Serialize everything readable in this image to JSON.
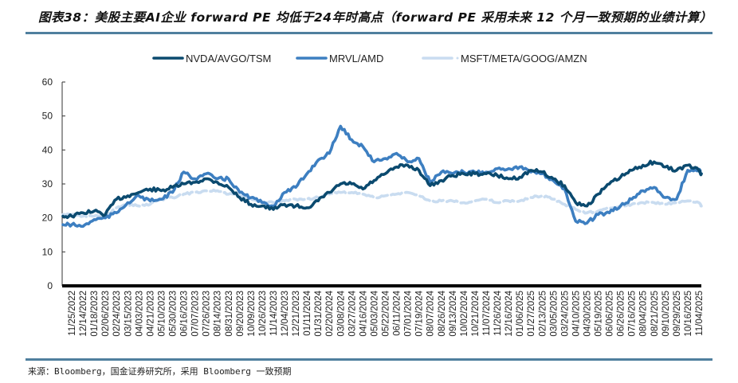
{
  "figure": {
    "title": "图表38：美股主要AI企业 forward PE 均低于24年时高点（forward PE 采用未来 12 个月一致预期的业绩计算）",
    "source": "来源：Bloomberg，国金证券研究所，采用 Bloomberg 一致预期"
  },
  "chart_data": {
    "type": "line",
    "title": "美股主要AI企业 forward PE 均低于24年时高点",
    "xlabel": "",
    "ylabel": "",
    "ylim": [
      0,
      60
    ],
    "yticks": [
      0,
      10,
      20,
      30,
      40,
      50,
      60
    ],
    "grid": false,
    "legend_position": "top-center",
    "x": [
      "11/25/2022",
      "12/14/2022",
      "01/18/2023",
      "02/06/2023",
      "02/24/2023",
      "03/15/2023",
      "04/03/2023",
      "04/21/2023",
      "05/10/2023",
      "05/30/2023",
      "06/16/2023",
      "07/07/2023",
      "07/26/2023",
      "08/14/2023",
      "08/31/2023",
      "09/20/2023",
      "10/09/2023",
      "10/26/2023",
      "11/14/2023",
      "12/04/2023",
      "12/21/2023",
      "01/11/2024",
      "01/31/2024",
      "02/20/2024",
      "03/08/2024",
      "03/27/2024",
      "04/16/2024",
      "05/03/2024",
      "05/22/2024",
      "06/11/2024",
      "07/01/2024",
      "07/19/2024",
      "08/07/2024",
      "08/26/2024",
      "09/13/2024",
      "10/02/2024",
      "10/21/2024",
      "11/07/2024",
      "11/26/2024",
      "12/16/2024",
      "01/06/2025",
      "01/27/2025",
      "02/13/2025",
      "03/05/2025",
      "03/24/2025",
      "04/10/2025",
      "04/30/2025",
      "05/19/2025",
      "06/06/2025",
      "06/26/2025",
      "07/16/2025",
      "08/04/2025",
      "08/21/2025",
      "09/10/2025",
      "09/29/2025",
      "10/16/2025",
      "11/04/2025"
    ],
    "series": [
      {
        "name": "NVDA/AVGO/TSM",
        "color": "#0b4a6f",
        "values": [
          20.5,
          21.5,
          22.0,
          21.0,
          25.5,
          26.5,
          27.5,
          28.5,
          28.0,
          29.0,
          30.0,
          30.5,
          31.5,
          30.5,
          29.0,
          26.0,
          24.0,
          23.5,
          22.5,
          24.0,
          23.5,
          23.0,
          25.0,
          27.5,
          30.0,
          30.0,
          28.5,
          31.0,
          33.0,
          35.0,
          35.5,
          34.0,
          29.5,
          31.0,
          32.5,
          33.0,
          33.0,
          33.0,
          32.5,
          31.5,
          32.0,
          34.0,
          33.5,
          31.5,
          29.5,
          24.5,
          23.5,
          27.0,
          30.0,
          32.0,
          34.0,
          35.5,
          36.5,
          35.0,
          34.0,
          35.5,
          34.0
        ]
      },
      {
        "name": "MRVL/AMD",
        "color": "#3d7fc1",
        "values": [
          18.0,
          17.5,
          19.5,
          20.0,
          21.5,
          24.5,
          26.5,
          25.0,
          25.5,
          27.5,
          33.5,
          31.5,
          33.0,
          31.5,
          31.5,
          27.5,
          26.0,
          24.5,
          23.5,
          27.5,
          29.0,
          33.0,
          37.0,
          39.0,
          47.0,
          43.0,
          41.0,
          36.5,
          37.5,
          39.0,
          36.5,
          37.5,
          30.5,
          33.5,
          33.0,
          33.5,
          33.5,
          33.5,
          34.5,
          34.5,
          35.0,
          33.5,
          33.0,
          31.0,
          28.5,
          19.0,
          18.5,
          21.0,
          21.5,
          23.5,
          25.5,
          28.0,
          29.0,
          26.0,
          25.5,
          34.0,
          34.0
        ]
      },
      {
        "name": "MSFT/META/GOOG/AMZN",
        "color": "#c9dcf0",
        "values": [
          21.0,
          20.5,
          20.5,
          20.5,
          23.0,
          24.0,
          23.5,
          24.0,
          25.5,
          26.0,
          27.0,
          27.5,
          28.0,
          28.0,
          27.0,
          26.5,
          25.5,
          24.5,
          24.5,
          25.0,
          25.5,
          25.5,
          26.0,
          27.0,
          27.5,
          27.5,
          27.0,
          26.0,
          26.5,
          27.0,
          27.5,
          26.5,
          25.0,
          25.0,
          25.0,
          24.5,
          25.0,
          25.5,
          24.5,
          25.0,
          25.0,
          26.0,
          26.5,
          25.5,
          24.0,
          22.5,
          21.5,
          22.0,
          23.0,
          23.5,
          24.0,
          24.5,
          24.5,
          24.0,
          24.5,
          25.0,
          24.5
        ]
      }
    ]
  }
}
